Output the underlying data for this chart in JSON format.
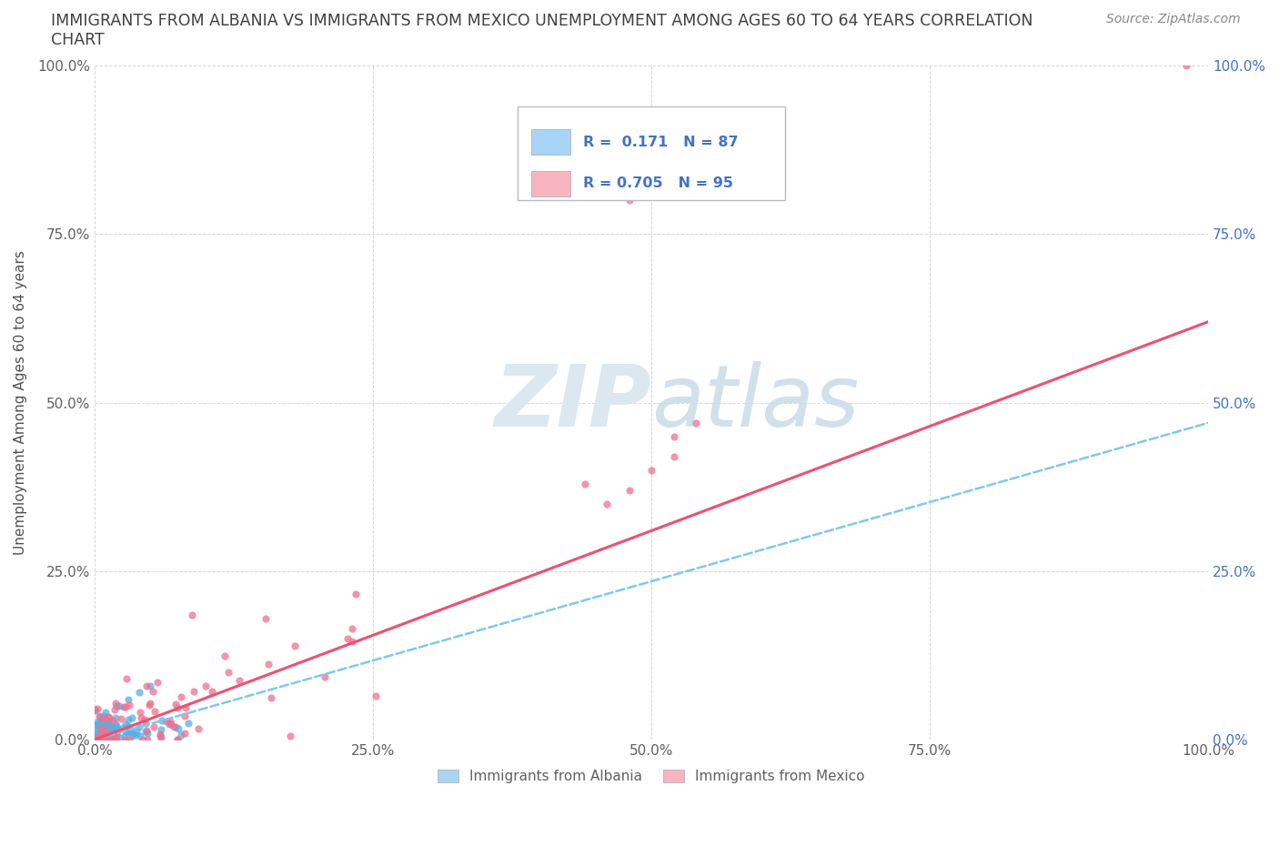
{
  "title_line1": "IMMIGRANTS FROM ALBANIA VS IMMIGRANTS FROM MEXICO UNEMPLOYMENT AMONG AGES 60 TO 64 YEARS CORRELATION",
  "title_line2": "CHART",
  "source": "Source: ZipAtlas.com",
  "ylabel": "Unemployment Among Ages 60 to 64 years",
  "xlim": [
    0.0,
    1.0
  ],
  "ylim": [
    0.0,
    1.0
  ],
  "xtick_labels": [
    "0.0%",
    "25.0%",
    "50.0%",
    "75.0%",
    "100.0%"
  ],
  "xtick_vals": [
    0.0,
    0.25,
    0.5,
    0.75,
    1.0
  ],
  "ytick_labels": [
    "0.0%",
    "25.0%",
    "50.0%",
    "75.0%",
    "100.0%"
  ],
  "ytick_vals": [
    0.0,
    0.25,
    0.5,
    0.75,
    1.0
  ],
  "right_ytick_labels": [
    "0.0%",
    "25.0%",
    "50.0%",
    "75.0%",
    "100.0%"
  ],
  "right_ytick_vals": [
    0.0,
    0.25,
    0.5,
    0.75,
    1.0
  ],
  "R_albania": 0.171,
  "N_albania": 87,
  "R_mexico": 0.705,
  "N_mexico": 95,
  "legend_albania_color": "#a8d4f5",
  "legend_mexico_color": "#f8b4c0",
  "albania_scatter_color": "#5baee0",
  "mexico_scatter_color": "#f07090",
  "albania_line_color": "#7ec8f0",
  "mexico_line_color": "#f05070",
  "watermark_color": "#dce8f0",
  "background_color": "#ffffff",
  "grid_color": "#cccccc",
  "title_color": "#404040",
  "axis_label_color": "#505050",
  "tick_label_color": "#606060",
  "right_tick_color": "#4472c4",
  "legend_text_color": "#4472c4",
  "albania_trend_slope": 0.47,
  "mexico_trend_slope": 0.62
}
